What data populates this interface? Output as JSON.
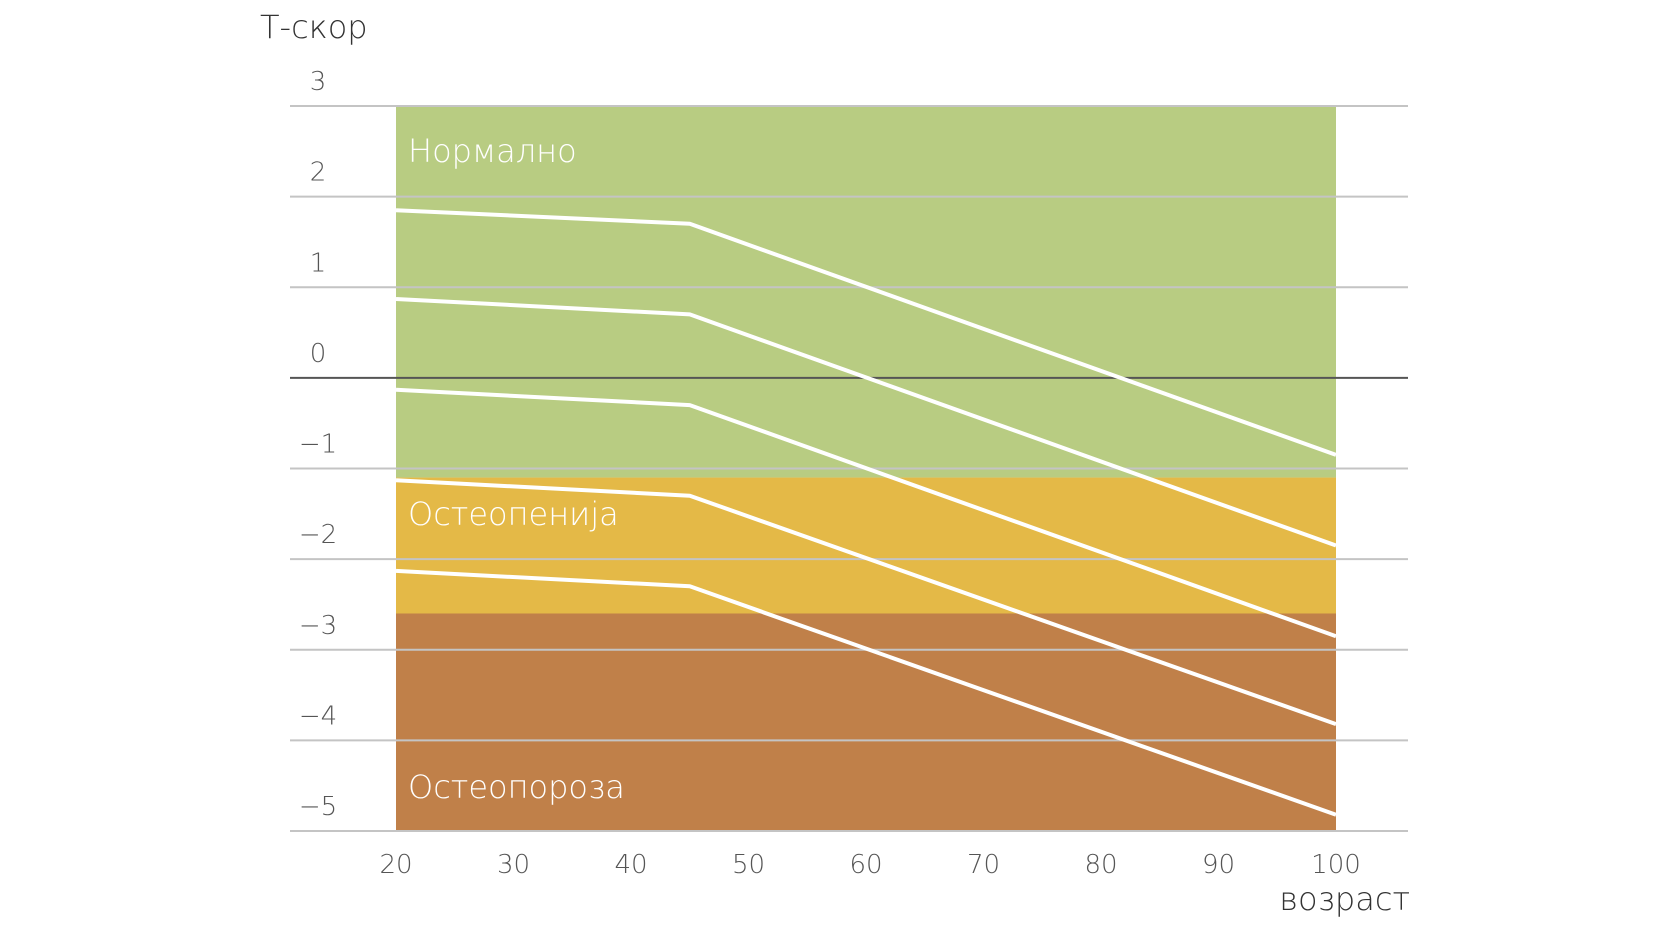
{
  "chart_data": {
    "type": "line",
    "ylabel": "Т-скор",
    "xlabel": "возраст",
    "xlim": [
      20,
      100
    ],
    "ylim": [
      -5,
      3
    ],
    "y_grid_extent": [
      -5,
      3
    ],
    "x_ticks": [
      20,
      30,
      40,
      50,
      60,
      70,
      80,
      90,
      100
    ],
    "y_ticks": [
      3,
      2,
      1,
      0,
      -1,
      -2,
      -3,
      -4,
      -5
    ],
    "y_tick_labels": [
      "3",
      "2",
      "1",
      "0",
      "−1",
      "−2",
      "−3",
      "−4",
      "−5"
    ],
    "grid": true,
    "zones": [
      {
        "label": "Нормално",
        "y_from": -1.1,
        "y_to": 3,
        "color": "#b8cc82"
      },
      {
        "label": "Остеопенија",
        "y_from": -2.6,
        "y_to": -1.1,
        "color": "#e4b947"
      },
      {
        "label": "Остеопороза",
        "y_from": -5,
        "y_to": -2.6,
        "color": "#c08049"
      }
    ],
    "series": [
      {
        "x": [
          20,
          45,
          100
        ],
        "y": [
          1.85,
          1.7,
          -0.85
        ]
      },
      {
        "x": [
          20,
          45,
          100
        ],
        "y": [
          0.87,
          0.7,
          -1.85
        ]
      },
      {
        "x": [
          20,
          45,
          100
        ],
        "y": [
          -0.13,
          -0.3,
          -2.85
        ]
      },
      {
        "x": [
          20,
          45,
          100
        ],
        "y": [
          -1.13,
          -1.3,
          -3.82
        ]
      },
      {
        "x": [
          20,
          45,
          100
        ],
        "y": [
          -2.13,
          -2.3,
          -4.82
        ]
      }
    ],
    "colors": {
      "series": "#ffffff",
      "grid": "#c4c4c4",
      "zero_line": "#555555"
    }
  }
}
